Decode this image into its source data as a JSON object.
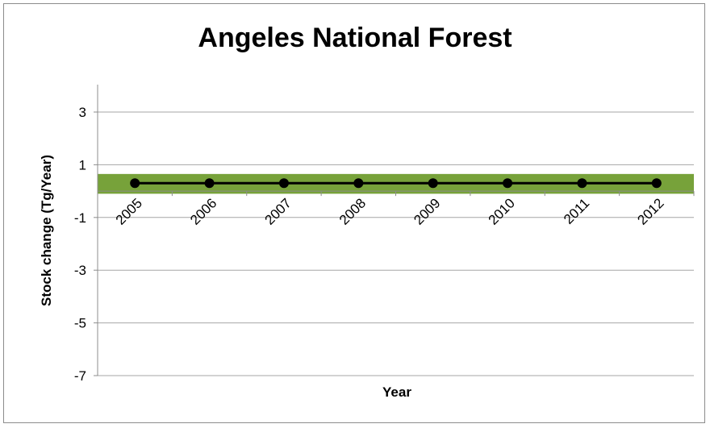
{
  "chart_data": {
    "type": "line",
    "title": "Angeles National Forest",
    "xlabel": "Year",
    "ylabel": "Stock change (Tg/Year)",
    "categories": [
      "2005",
      "2006",
      "2007",
      "2008",
      "2009",
      "2010",
      "2011",
      "2012"
    ],
    "series": [
      {
        "values": [
          0.3,
          0.3,
          0.3,
          0.3,
          0.3,
          0.3,
          0.3,
          0.3
        ],
        "color": "#000000"
      }
    ],
    "band": {
      "from": -0.1,
      "to": 0.65,
      "color": "#77a23a"
    },
    "yticks": [
      3,
      1,
      -1,
      -3,
      -5,
      -7
    ],
    "ylim": [
      -7,
      4
    ],
    "grid": true,
    "legend": "none"
  }
}
